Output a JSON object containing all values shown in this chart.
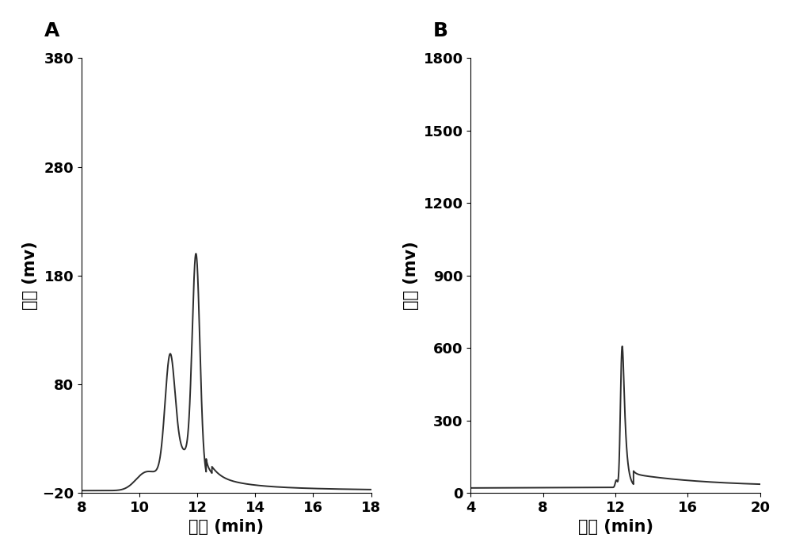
{
  "panel_A": {
    "xlim": [
      8,
      18
    ],
    "ylim": [
      -20,
      380
    ],
    "xticks": [
      8,
      10,
      12,
      14,
      16,
      18
    ],
    "yticks": [
      -20,
      80,
      180,
      280,
      380
    ],
    "xlabel": "时间 (min)",
    "ylabel": "电压 (mv)",
    "label": "A",
    "baseline": -18,
    "line_color": "#2d2d2d"
  },
  "panel_B": {
    "xlim": [
      4,
      20
    ],
    "ylim": [
      0,
      1800
    ],
    "xticks": [
      4,
      8,
      12,
      16,
      20
    ],
    "yticks": [
      0,
      300,
      600,
      900,
      1200,
      1500,
      1800
    ],
    "xlabel": "时间 (min)",
    "ylabel": "电压 (mv)",
    "label": "B",
    "baseline": 20,
    "line_color": "#2d2d2d"
  },
  "figure_bg": "#ffffff",
  "font_size_ticks": 13,
  "font_size_axis": 15,
  "font_size_panel_label": 18,
  "line_width": 1.4
}
